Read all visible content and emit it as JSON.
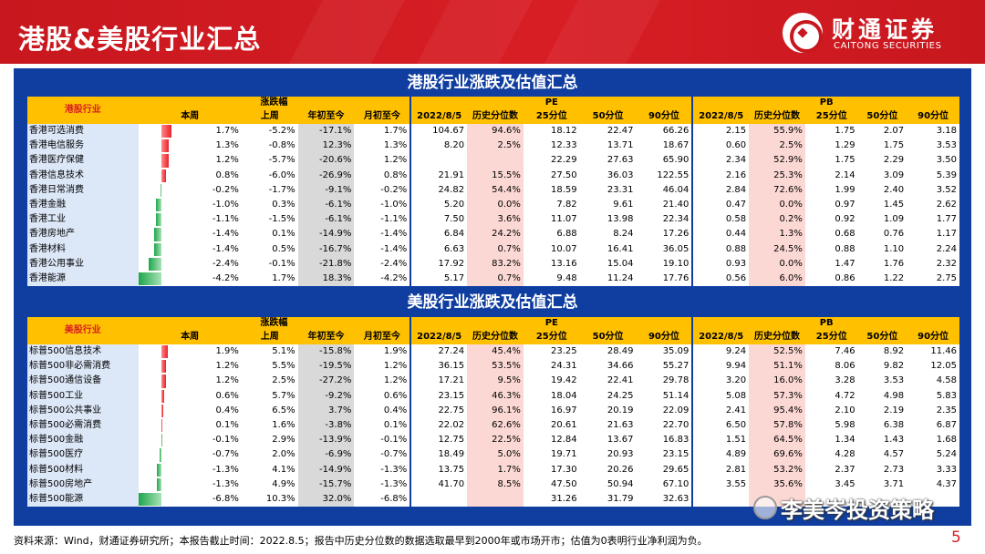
{
  "page": {
    "title": "港股&美股行业汇总",
    "logo_cn": "财通证券",
    "logo_en": "CAITONG SECURITIES",
    "footer": "资料来源：Wind，财通证券研究所；本报告截止时间：2022.8.5；报告中历史分位数的数据选取最早到2000年或市场开市；估值为0表明行业净利润为负。",
    "page_number": "5",
    "watermark": "李美岑投资策略"
  },
  "colors": {
    "brand_red": "#c8171e",
    "panel_blue": "#0f3ea0",
    "header_yellow": "#ffc000",
    "up_red": "#e8222a",
    "down_green": "#1ea64a"
  },
  "hk": {
    "section_title": "港股行业涨跌及估值汇总",
    "industry_header": "港股行业",
    "group_change": "涨跌幅",
    "group_pe": "PE",
    "group_pb": "PB",
    "col_change": [
      "本周",
      "上周",
      "年初至今",
      "月初至今"
    ],
    "col_val": [
      "2022/8/5",
      "历史分位数",
      "25分位",
      "50分位",
      "90分位"
    ],
    "rows": [
      {
        "name": "香港可选消费",
        "bar": 1.7,
        "w": "1.7%",
        "lw": "-5.2%",
        "ytd": "-17.1%",
        "mtd": "1.7%",
        "pe": "104.67",
        "pe_pct": "94.6%",
        "pe25": "18.12",
        "pe50": "22.47",
        "pe90": "66.26",
        "pb": "2.15",
        "pb_pct": "55.9%",
        "pb25": "1.75",
        "pb50": "2.07",
        "pb90": "3.18"
      },
      {
        "name": "香港电信服务",
        "bar": 1.3,
        "w": "1.3%",
        "lw": "-0.8%",
        "ytd": "12.3%",
        "mtd": "1.3%",
        "pe": "8.20",
        "pe_pct": "2.5%",
        "pe25": "12.33",
        "pe50": "13.71",
        "pe90": "18.67",
        "pb": "0.60",
        "pb_pct": "2.5%",
        "pb25": "1.29",
        "pb50": "1.75",
        "pb90": "3.53"
      },
      {
        "name": "香港医疗保健",
        "bar": 1.2,
        "w": "1.2%",
        "lw": "-5.7%",
        "ytd": "-20.6%",
        "mtd": "1.2%",
        "pe": "",
        "pe_pct": "",
        "pe25": "22.29",
        "pe50": "27.63",
        "pe90": "65.90",
        "pb": "2.34",
        "pb_pct": "52.9%",
        "pb25": "1.75",
        "pb50": "2.29",
        "pb90": "3.50"
      },
      {
        "name": "香港信息技术",
        "bar": 0.8,
        "w": "0.8%",
        "lw": "-6.0%",
        "ytd": "-26.9%",
        "mtd": "0.8%",
        "pe": "21.91",
        "pe_pct": "15.5%",
        "pe25": "27.50",
        "pe50": "36.03",
        "pe90": "122.55",
        "pb": "2.16",
        "pb_pct": "25.3%",
        "pb25": "2.14",
        "pb50": "3.09",
        "pb90": "5.39"
      },
      {
        "name": "香港日常消费",
        "bar": -0.2,
        "w": "-0.2%",
        "lw": "-1.7%",
        "ytd": "-9.1%",
        "mtd": "-0.2%",
        "pe": "24.82",
        "pe_pct": "54.4%",
        "pe25": "18.59",
        "pe50": "23.31",
        "pe90": "46.04",
        "pb": "2.84",
        "pb_pct": "72.6%",
        "pb25": "1.99",
        "pb50": "2.40",
        "pb90": "3.52"
      },
      {
        "name": "香港金融",
        "bar": -1.0,
        "w": "-1.0%",
        "lw": "0.3%",
        "ytd": "-6.1%",
        "mtd": "-1.0%",
        "pe": "5.20",
        "pe_pct": "0.0%",
        "pe25": "7.82",
        "pe50": "9.61",
        "pe90": "21.40",
        "pb": "0.47",
        "pb_pct": "0.0%",
        "pb25": "0.97",
        "pb50": "1.45",
        "pb90": "2.62"
      },
      {
        "name": "香港工业",
        "bar": -1.1,
        "w": "-1.1%",
        "lw": "-1.5%",
        "ytd": "-6.1%",
        "mtd": "-1.1%",
        "pe": "7.50",
        "pe_pct": "3.6%",
        "pe25": "11.07",
        "pe50": "13.98",
        "pe90": "22.34",
        "pb": "0.58",
        "pb_pct": "0.2%",
        "pb25": "0.92",
        "pb50": "1.09",
        "pb90": "1.77"
      },
      {
        "name": "香港房地产",
        "bar": -1.4,
        "w": "-1.4%",
        "lw": "0.1%",
        "ytd": "-14.9%",
        "mtd": "-1.4%",
        "pe": "6.84",
        "pe_pct": "24.2%",
        "pe25": "6.88",
        "pe50": "8.24",
        "pe90": "17.26",
        "pb": "0.44",
        "pb_pct": "1.3%",
        "pb25": "0.68",
        "pb50": "0.76",
        "pb90": "1.17"
      },
      {
        "name": "香港材料",
        "bar": -1.4,
        "w": "-1.4%",
        "lw": "0.5%",
        "ytd": "-16.7%",
        "mtd": "-1.4%",
        "pe": "6.63",
        "pe_pct": "0.7%",
        "pe25": "10.07",
        "pe50": "16.41",
        "pe90": "36.05",
        "pb": "0.88",
        "pb_pct": "24.5%",
        "pb25": "0.88",
        "pb50": "1.10",
        "pb90": "2.24"
      },
      {
        "name": "香港公用事业",
        "bar": -2.4,
        "w": "-2.4%",
        "lw": "-0.1%",
        "ytd": "-21.8%",
        "mtd": "-2.4%",
        "pe": "17.92",
        "pe_pct": "83.2%",
        "pe25": "13.16",
        "pe50": "15.04",
        "pe90": "19.10",
        "pb": "0.93",
        "pb_pct": "0.0%",
        "pb25": "1.47",
        "pb50": "1.76",
        "pb90": "2.32"
      },
      {
        "name": "香港能源",
        "bar": -4.2,
        "w": "-4.2%",
        "lw": "1.7%",
        "ytd": "18.3%",
        "mtd": "-4.2%",
        "pe": "5.17",
        "pe_pct": "0.7%",
        "pe25": "9.48",
        "pe50": "11.24",
        "pe90": "17.76",
        "pb": "0.56",
        "pb_pct": "6.0%",
        "pb25": "0.86",
        "pb50": "1.22",
        "pb90": "2.75"
      }
    ]
  },
  "us": {
    "section_title": "美股行业涨跌及估值汇总",
    "industry_header": "美股行业",
    "group_change": "涨跌幅",
    "group_pe": "PE",
    "group_pb": "PB",
    "col_change": [
      "本周",
      "上周",
      "年初至今",
      "月初至今"
    ],
    "col_val": [
      "2022/8/5",
      "历史分位数",
      "25分位",
      "50分位",
      "90分位"
    ],
    "rows": [
      {
        "name": "标普500信息技术",
        "bar": 1.9,
        "w": "1.9%",
        "lw": "5.1%",
        "ytd": "-15.8%",
        "mtd": "1.9%",
        "pe": "27.24",
        "pe_pct": "45.4%",
        "pe25": "23.25",
        "pe50": "28.49",
        "pe90": "35.09",
        "pb": "9.24",
        "pb_pct": "52.5%",
        "pb25": "7.46",
        "pb50": "8.92",
        "pb90": "11.46"
      },
      {
        "name": "标普500非必需消费",
        "bar": 1.2,
        "w": "1.2%",
        "lw": "5.5%",
        "ytd": "-19.5%",
        "mtd": "1.2%",
        "pe": "36.15",
        "pe_pct": "53.5%",
        "pe25": "24.31",
        "pe50": "34.66",
        "pe90": "55.27",
        "pb": "9.94",
        "pb_pct": "51.1%",
        "pb25": "8.06",
        "pb50": "9.82",
        "pb90": "12.05"
      },
      {
        "name": "标普500通信设备",
        "bar": 1.2,
        "w": "1.2%",
        "lw": "2.5%",
        "ytd": "-27.2%",
        "mtd": "1.2%",
        "pe": "17.21",
        "pe_pct": "9.5%",
        "pe25": "19.42",
        "pe50": "22.41",
        "pe90": "29.78",
        "pb": "3.20",
        "pb_pct": "16.0%",
        "pb25": "3.28",
        "pb50": "3.53",
        "pb90": "4.58"
      },
      {
        "name": "标普500工业",
        "bar": 0.6,
        "w": "0.6%",
        "lw": "5.7%",
        "ytd": "-9.2%",
        "mtd": "0.6%",
        "pe": "23.15",
        "pe_pct": "46.3%",
        "pe25": "18.04",
        "pe50": "24.25",
        "pe90": "51.14",
        "pb": "5.08",
        "pb_pct": "57.3%",
        "pb25": "4.72",
        "pb50": "4.98",
        "pb90": "5.83"
      },
      {
        "name": "标普500公共事业",
        "bar": 0.4,
        "w": "0.4%",
        "lw": "6.5%",
        "ytd": "3.7%",
        "mtd": "0.4%",
        "pe": "22.75",
        "pe_pct": "96.1%",
        "pe25": "16.97",
        "pe50": "20.19",
        "pe90": "22.09",
        "pb": "2.41",
        "pb_pct": "95.4%",
        "pb25": "2.10",
        "pb50": "2.19",
        "pb90": "2.35"
      },
      {
        "name": "标普500必需消费",
        "bar": 0.1,
        "w": "0.1%",
        "lw": "1.6%",
        "ytd": "-3.8%",
        "mtd": "0.1%",
        "pe": "22.02",
        "pe_pct": "62.6%",
        "pe25": "20.61",
        "pe50": "21.63",
        "pe90": "22.70",
        "pb": "6.50",
        "pb_pct": "57.8%",
        "pb25": "5.98",
        "pb50": "6.38",
        "pb90": "6.87"
      },
      {
        "name": "标普500金融",
        "bar": -0.1,
        "w": "-0.1%",
        "lw": "2.9%",
        "ytd": "-13.9%",
        "mtd": "-0.1%",
        "pe": "12.75",
        "pe_pct": "22.5%",
        "pe25": "12.84",
        "pe50": "13.67",
        "pe90": "16.83",
        "pb": "1.51",
        "pb_pct": "64.5%",
        "pb25": "1.34",
        "pb50": "1.43",
        "pb90": "1.68"
      },
      {
        "name": "标普500医疗",
        "bar": -0.7,
        "w": "-0.7%",
        "lw": "2.0%",
        "ytd": "-6.9%",
        "mtd": "-0.7%",
        "pe": "18.49",
        "pe_pct": "5.0%",
        "pe25": "19.71",
        "pe50": "20.93",
        "pe90": "23.15",
        "pb": "4.89",
        "pb_pct": "69.6%",
        "pb25": "4.28",
        "pb50": "4.57",
        "pb90": "5.24"
      },
      {
        "name": "标普500材料",
        "bar": -1.3,
        "w": "-1.3%",
        "lw": "4.1%",
        "ytd": "-14.9%",
        "mtd": "-1.3%",
        "pe": "13.75",
        "pe_pct": "1.7%",
        "pe25": "17.30",
        "pe50": "20.26",
        "pe90": "29.65",
        "pb": "2.81",
        "pb_pct": "53.2%",
        "pb25": "2.37",
        "pb50": "2.73",
        "pb90": "3.33"
      },
      {
        "name": "标普500房地产",
        "bar": -1.3,
        "w": "-1.3%",
        "lw": "4.9%",
        "ytd": "-15.7%",
        "mtd": "-1.3%",
        "pe": "41.70",
        "pe_pct": "8.5%",
        "pe25": "47.50",
        "pe50": "50.94",
        "pe90": "67.10",
        "pb": "3.55",
        "pb_pct": "35.6%",
        "pb25": "3.45",
        "pb50": "3.71",
        "pb90": "4.37"
      },
      {
        "name": "标普500能源",
        "bar": -6.8,
        "w": "-6.8%",
        "lw": "10.3%",
        "ytd": "32.0%",
        "mtd": "-6.8%",
        "pe": "",
        "pe_pct": "",
        "pe25": "31.26",
        "pe50": "31.79",
        "pe90": "32.63",
        "pb": "",
        "pb_pct": "",
        "pb25": "",
        "pb50": "",
        "pb90": ""
      }
    ]
  }
}
